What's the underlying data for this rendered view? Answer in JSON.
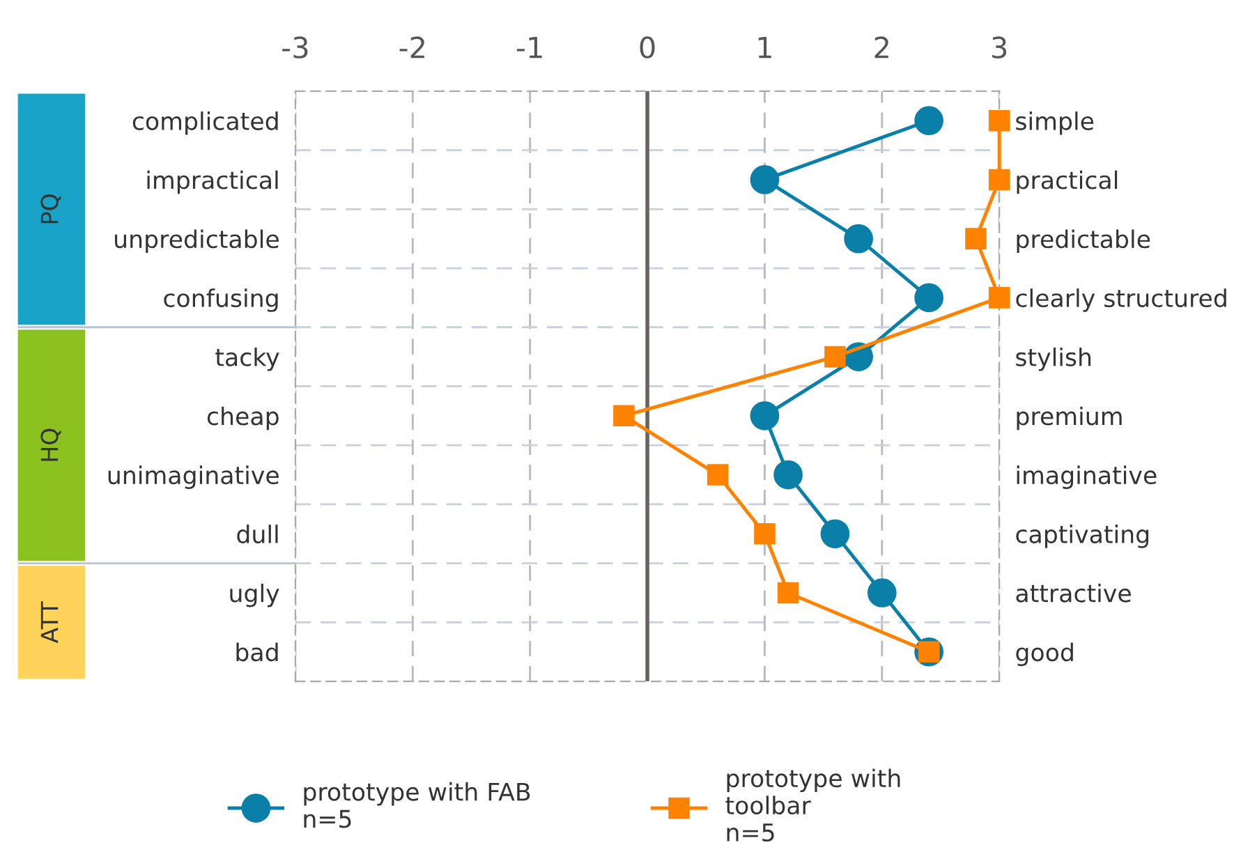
{
  "chart_data": {
    "type": "line",
    "orientation": "horizontal",
    "categories": [
      "complicated",
      "impractical",
      "unpredictable",
      "confusing",
      "tacky",
      "cheap",
      "unimaginative",
      "dull",
      "ugly",
      "bad"
    ],
    "y2_categories": [
      "simple",
      "practical",
      "predictable",
      "clearly structured",
      "stylish",
      "premium",
      "imaginative",
      "captivating",
      "attractive",
      "good"
    ],
    "series": [
      {
        "name": "prototype with FAB\nn=5",
        "color": "#0a7fa8",
        "marker": "circle",
        "values": [
          2.4,
          1.0,
          1.8,
          2.4,
          1.8,
          1.0,
          1.2,
          1.6,
          2.0,
          2.4
        ]
      },
      {
        "name": "prototype with\ntoolbar\nn=5",
        "color": "#ff8200",
        "marker": "square",
        "values": [
          3.0,
          3.0,
          2.8,
          3.0,
          1.6,
          -0.2,
          0.6,
          1.0,
          1.2,
          2.4
        ]
      }
    ],
    "xlim": [
      -3,
      3
    ],
    "xticks": [
      -3,
      -2,
      -1,
      0,
      1,
      2,
      3
    ],
    "ref_lines": [
      {
        "axis": "x",
        "value": 0,
        "color": "#6b625e"
      }
    ],
    "annotations": [
      "PQ",
      "HQ",
      "ATT"
    ],
    "grid": true,
    "legend": "bottom",
    "line_style": "solid"
  }
}
